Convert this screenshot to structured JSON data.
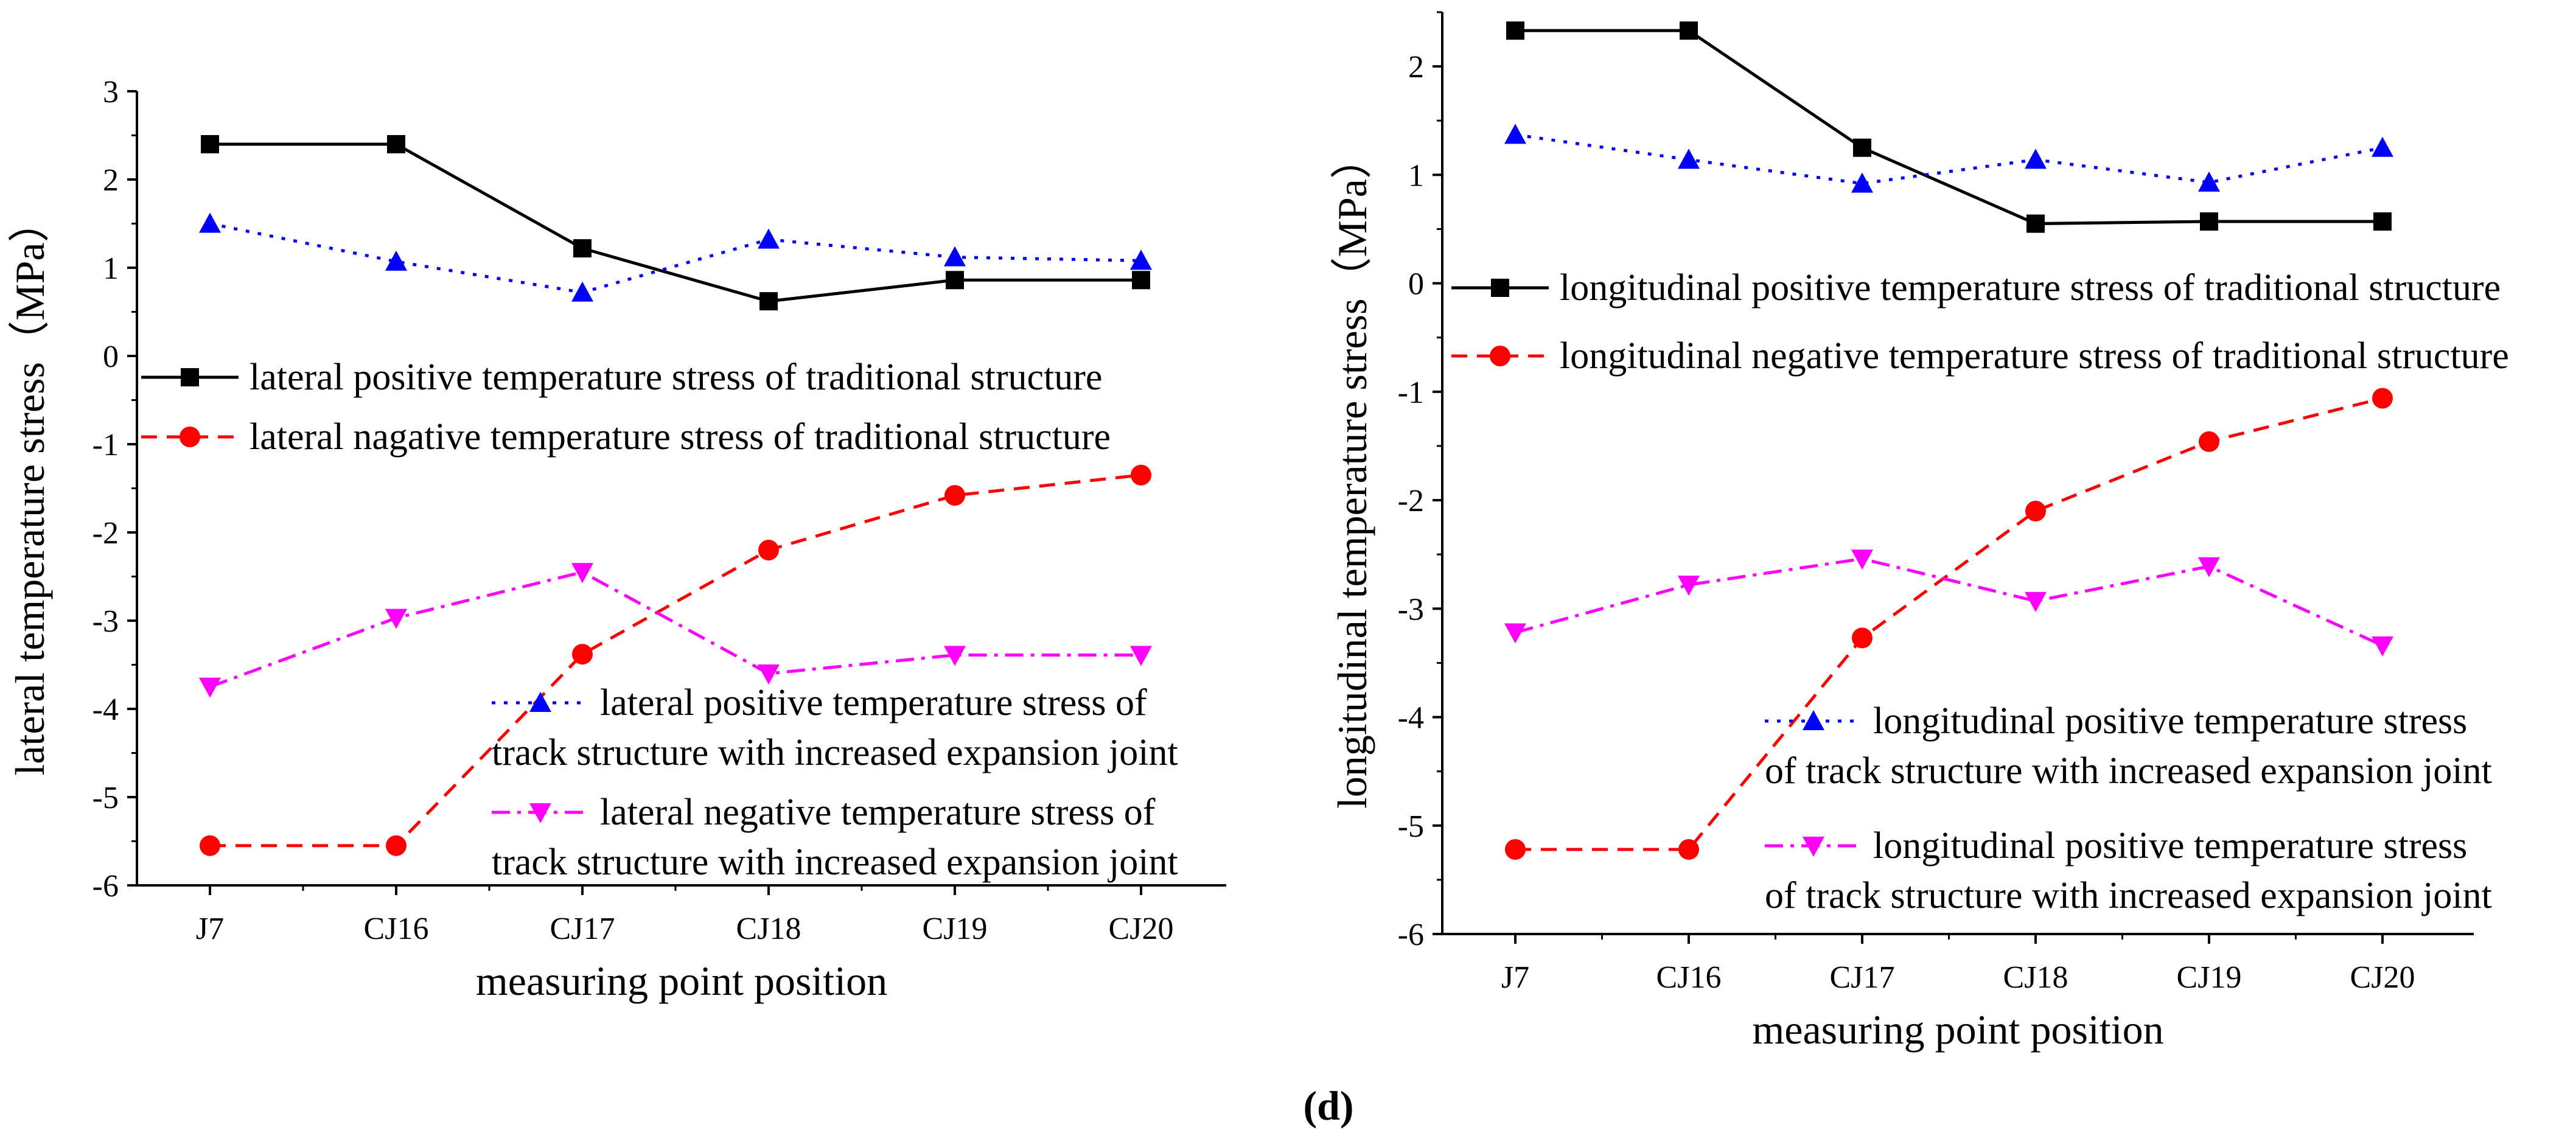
{
  "panel_label": "(d)",
  "chart_data": [
    {
      "type": "line",
      "xlabel": "measuring point position",
      "ylabel": "lateral temperature stress（MPa）",
      "categories": [
        "J7",
        "CJ16",
        "CJ17",
        "CJ18",
        "CJ19",
        "CJ20"
      ],
      "ylim": [
        -6,
        3
      ],
      "yticks": [
        "-6",
        "-5",
        "-4",
        "-3",
        "-2",
        "-1",
        "0",
        "1",
        "2",
        "3"
      ],
      "grid": false,
      "legend_placement": "middle-left and bottom-right",
      "series": [
        {
          "name": "lateral positive temperature stress of traditional structure",
          "values": [
            2.4,
            2.4,
            1.22,
            0.62,
            0.86,
            0.86
          ],
          "color": "#000000",
          "marker": "square",
          "dash": "solid"
        },
        {
          "name": "lateral nagative temperature stress of traditional structure",
          "values": [
            -5.55,
            -5.55,
            -3.38,
            -2.2,
            -1.58,
            -1.35
          ],
          "color": "#ff0000",
          "marker": "circle",
          "dash": "dashed"
        },
        {
          "name_lines": [
            "lateral positive temperature stress of",
            "track structure with increased expansion joint"
          ],
          "values": [
            1.5,
            1.07,
            0.72,
            1.32,
            1.12,
            1.08
          ],
          "color": "#0000ff",
          "marker": "triangle-up",
          "dash": "dotted"
        },
        {
          "name_lines": [
            "lateral negative temperature stress of",
            "track structure with increased expansion joint"
          ],
          "values": [
            -3.75,
            -2.97,
            -2.45,
            -3.6,
            -3.39,
            -3.39
          ],
          "color": "#ff00ff",
          "marker": "triangle-down",
          "dash": "dashdot"
        }
      ]
    },
    {
      "type": "line",
      "xlabel": "measuring point position",
      "ylabel": "longitudinal temperature stress（MPa）",
      "categories": [
        "J7",
        "CJ16",
        "CJ17",
        "CJ18",
        "CJ19",
        "CJ20"
      ],
      "ylim": [
        -6,
        2.5
      ],
      "yticks": [
        "-6",
        "-5",
        "-4",
        "-3",
        "-2",
        "-1",
        "0",
        "1",
        "2"
      ],
      "grid": false,
      "legend_placement": "top and bottom-right",
      "series": [
        {
          "name": "longitudinal positive temperature stress of traditional structure",
          "values": [
            2.33,
            2.33,
            1.25,
            0.55,
            0.57,
            0.57
          ],
          "color": "#000000",
          "marker": "square",
          "dash": "solid"
        },
        {
          "name": "longitudinal negative temperature stress of traditional structure",
          "values": [
            -5.22,
            -5.22,
            -3.27,
            -2.1,
            -1.46,
            -1.06
          ],
          "color": "#ff0000",
          "marker": "circle",
          "dash": "dashed"
        },
        {
          "name_lines": [
            "longitudinal positive temperature stress",
            "of track structure with increased expansion joint"
          ],
          "values": [
            1.37,
            1.14,
            0.92,
            1.14,
            0.93,
            1.25
          ],
          "color": "#0000ff",
          "marker": "triangle-up",
          "dash": "dotted"
        },
        {
          "name_lines": [
            "longitudinal positive temperature stress",
            "of track structure with increased expansion joint"
          ],
          "values": [
            -3.22,
            -2.78,
            -2.54,
            -2.93,
            -2.61,
            -3.34
          ],
          "color": "#ff00ff",
          "marker": "triangle-down",
          "dash": "dashdot"
        }
      ]
    }
  ]
}
